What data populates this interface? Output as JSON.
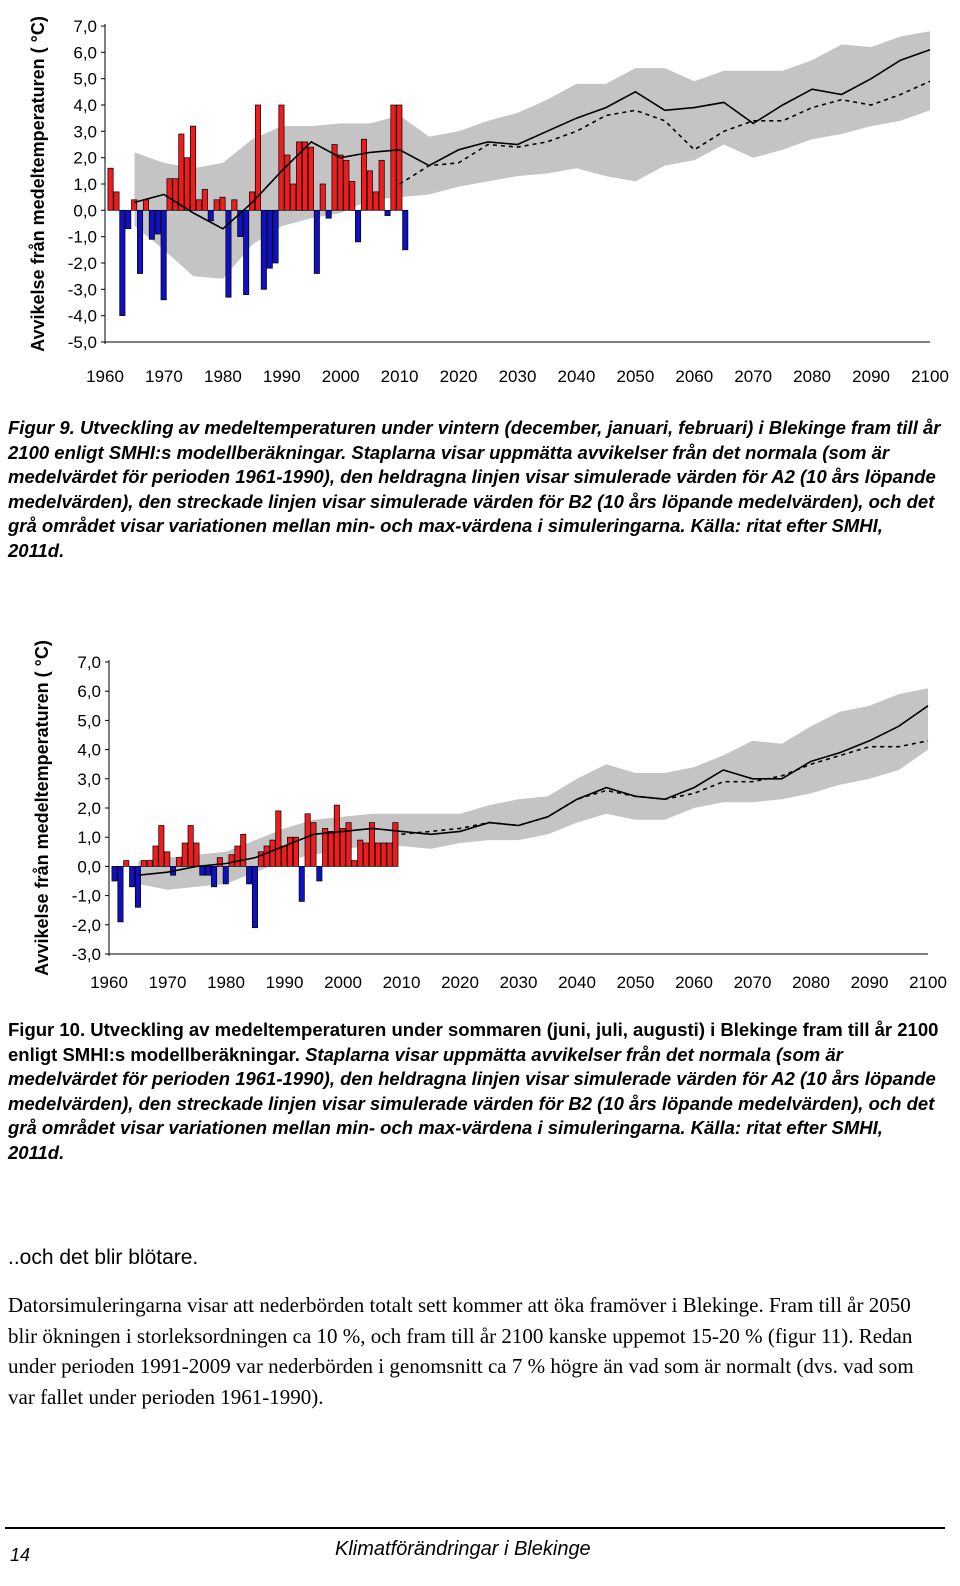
{
  "chart_data": [
    {
      "type": "bar",
      "ylabel": "Avvikelse från medeltemperaturen ( °C)",
      "ylim": [
        -5,
        7
      ],
      "xlim": [
        1960,
        2100
      ],
      "y_ticks": [
        "7,0",
        "6,0",
        "5,0",
        "4,0",
        "3,0",
        "2,0",
        "1,0",
        "0,0",
        "-1,0",
        "-2,0",
        "-3,0",
        "-4,0",
        "-5,0"
      ],
      "x_ticks": [
        "1960",
        "1970",
        "1980",
        "1990",
        "2000",
        "2010",
        "2020",
        "2030",
        "2040",
        "2050",
        "2060",
        "2070",
        "2080",
        "2090",
        "2100"
      ],
      "grid": false,
      "colors": {
        "positive": "#ee1c1c",
        "negative": "#1010c0",
        "range": "#c4c4c4"
      },
      "bars": {
        "start_year": 1961,
        "values": [
          1.6,
          0.7,
          -4.0,
          -0.7,
          0.4,
          -2.4,
          0.4,
          -1.1,
          -0.9,
          -3.4,
          1.2,
          1.2,
          2.9,
          2.0,
          3.2,
          0.4,
          0.8,
          -0.4,
          0.4,
          0.5,
          -3.3,
          0.4,
          -1.0,
          -3.2,
          0.7,
          4.0,
          -3.0,
          -2.2,
          -2.0,
          4.0,
          2.1,
          1.0,
          2.6,
          2.6,
          2.4,
          -2.4,
          1.0,
          -0.3,
          2.5,
          2.1,
          1.9,
          1.1,
          -1.2,
          2.7,
          1.5,
          0.7,
          1.9,
          -0.2,
          4.0,
          4.0,
          -1.5
        ]
      },
      "series": [
        {
          "name": "A2",
          "style": "solid",
          "x": [
            1965,
            1970,
            1975,
            1980,
            1985,
            1990,
            1995,
            2000,
            2005,
            2010,
            2015,
            2020,
            2025,
            2030,
            2035,
            2040,
            2045,
            2050,
            2055,
            2060,
            2065,
            2070,
            2075,
            2080,
            2085,
            2090,
            2095,
            2100
          ],
          "y": [
            0.3,
            0.6,
            -0.1,
            -0.7,
            0.3,
            1.5,
            2.6,
            2.0,
            2.2,
            2.3,
            1.7,
            2.3,
            2.6,
            2.5,
            3.0,
            3.5,
            3.9,
            4.5,
            3.8,
            3.9,
            4.1,
            3.3,
            4.0,
            4.6,
            4.4,
            5.0,
            5.7,
            6.1
          ]
        },
        {
          "name": "B2",
          "style": "dashed",
          "x": [
            2010,
            2015,
            2020,
            2025,
            2030,
            2035,
            2040,
            2045,
            2050,
            2055,
            2060,
            2065,
            2070,
            2075,
            2080,
            2085,
            2090,
            2095,
            2100
          ],
          "y": [
            1.0,
            1.7,
            1.8,
            2.5,
            2.4,
            2.6,
            3.0,
            3.6,
            3.8,
            3.4,
            2.3,
            3.0,
            3.4,
            3.4,
            3.9,
            4.2,
            4.0,
            4.4,
            4.9
          ]
        }
      ],
      "range_band": {
        "x": [
          1965,
          1970,
          1975,
          1980,
          1985,
          1990,
          1995,
          2000,
          2005,
          2010,
          2015,
          2020,
          2025,
          2030,
          2035,
          2040,
          2045,
          2050,
          2055,
          2060,
          2065,
          2070,
          2075,
          2080,
          2085,
          2090,
          2095,
          2100
        ],
        "min": [
          -0.6,
          -1.5,
          -2.5,
          -2.6,
          -1.3,
          -0.6,
          -0.3,
          -0.1,
          0.4,
          0.5,
          0.6,
          0.9,
          1.1,
          1.3,
          1.4,
          1.6,
          1.3,
          1.1,
          1.7,
          1.9,
          2.5,
          2.0,
          2.3,
          2.7,
          2.9,
          3.2,
          3.4,
          3.8
        ],
        "max": [
          2.2,
          1.8,
          1.6,
          1.8,
          2.7,
          3.2,
          3.2,
          3.3,
          3.3,
          3.6,
          2.8,
          3.0,
          3.4,
          3.7,
          4.2,
          4.8,
          4.8,
          5.4,
          5.4,
          4.9,
          5.3,
          5.3,
          5.3,
          5.7,
          6.3,
          6.2,
          6.6,
          6.8
        ]
      }
    },
    {
      "type": "bar",
      "ylabel": "Avvikelse från medeltemperaturen ( °C)",
      "ylim": [
        -3,
        7
      ],
      "xlim": [
        1960,
        2100
      ],
      "y_ticks": [
        "7,0",
        "6,0",
        "5,0",
        "4,0",
        "3,0",
        "2,0",
        "1,0",
        "0,0",
        "-1,0",
        "-2,0",
        "-3,0"
      ],
      "x_ticks": [
        "1960",
        "1970",
        "1980",
        "1990",
        "2000",
        "2010",
        "2020",
        "2030",
        "2040",
        "2050",
        "2060",
        "2070",
        "2080",
        "2090",
        "2100"
      ],
      "grid": false,
      "colors": {
        "positive": "#ee1c1c",
        "negative": "#1010c0",
        "range": "#c4c4c4"
      },
      "bars": {
        "start_year": 1961,
        "values": [
          -0.5,
          -1.9,
          0.2,
          -0.7,
          -1.4,
          0.2,
          0.2,
          0.7,
          1.4,
          0.5,
          -0.3,
          0.3,
          0.8,
          1.4,
          0.8,
          -0.3,
          -0.3,
          -0.7,
          0.3,
          -0.6,
          0.4,
          0.7,
          1.1,
          -0.6,
          -2.1,
          0.5,
          0.7,
          0.9,
          1.9,
          0.7,
          1.0,
          1.0,
          -1.2,
          1.8,
          1.5,
          -0.5,
          1.3,
          1.2,
          2.1,
          1.3,
          1.5,
          0.2,
          0.9,
          0.8,
          1.5,
          0.8,
          0.8,
          0.8,
          1.5
        ]
      },
      "series": [
        {
          "name": "A2",
          "style": "solid",
          "x": [
            1965,
            1970,
            1975,
            1980,
            1985,
            1990,
            1995,
            2000,
            2005,
            2010,
            2015,
            2020,
            2025,
            2030,
            2035,
            2040,
            2045,
            2050,
            2055,
            2060,
            2065,
            2070,
            2075,
            2080,
            2085,
            2090,
            2095,
            2100
          ],
          "y": [
            -0.3,
            -0.2,
            0.0,
            0.1,
            0.3,
            0.7,
            1.1,
            1.2,
            1.3,
            1.2,
            1.1,
            1.2,
            1.5,
            1.4,
            1.7,
            2.3,
            2.7,
            2.4,
            2.3,
            2.7,
            3.3,
            3.0,
            3.0,
            3.6,
            3.9,
            4.3,
            4.8,
            5.5
          ]
        },
        {
          "name": "B2",
          "style": "dashed",
          "x": [
            2010,
            2015,
            2020,
            2025,
            2030,
            2035,
            2040,
            2045,
            2050,
            2055,
            2060,
            2065,
            2070,
            2075,
            2080,
            2085,
            2090,
            2095,
            2100
          ],
          "y": [
            1.1,
            1.2,
            1.3,
            1.5,
            1.4,
            1.7,
            2.3,
            2.6,
            2.4,
            2.3,
            2.5,
            2.9,
            2.9,
            3.1,
            3.5,
            3.8,
            4.1,
            4.1,
            4.3
          ]
        }
      ],
      "range_band": {
        "x": [
          1965,
          1970,
          1975,
          1980,
          1985,
          1990,
          1995,
          2000,
          2005,
          2010,
          2015,
          2020,
          2025,
          2030,
          2035,
          2040,
          2045,
          2050,
          2055,
          2060,
          2065,
          2070,
          2075,
          2080,
          2085,
          2090,
          2095,
          2100
        ],
        "min": [
          -0.6,
          -0.8,
          -0.7,
          -0.6,
          -0.2,
          0.2,
          0.4,
          0.6,
          0.7,
          0.7,
          0.6,
          0.8,
          0.9,
          0.9,
          1.1,
          1.5,
          1.8,
          1.6,
          1.6,
          2.0,
          2.2,
          2.2,
          2.3,
          2.5,
          2.8,
          3.0,
          3.3,
          4.0
        ],
        "max": [
          0.2,
          0.3,
          0.4,
          0.5,
          0.9,
          1.3,
          1.6,
          1.7,
          1.8,
          1.8,
          1.8,
          1.8,
          2.1,
          2.3,
          2.4,
          3.0,
          3.5,
          3.2,
          3.2,
          3.4,
          3.8,
          4.3,
          4.2,
          4.8,
          5.3,
          5.5,
          5.9,
          6.1
        ]
      }
    }
  ],
  "captions": {
    "fig9": "Figur 9. Utveckling av medeltemperaturen under vintern (december, januari, februari) i Blekinge fram till år 2100 enligt SMHI:s modellberäkningar. Staplarna visar uppmätta avvikelser från det normala (som är medelvärdet för perioden 1961-1990), den heldragna linjen visar simulerade värden för A2 (10 års löpande medelvärden), den streckade linjen visar simulerade värden för B2 (10 års löpande medelvärden), och det grå området visar variationen mellan min- och max-värdena i simuleringarna. Källa: ritat efter SMHI, 2011d.",
    "fig10_title": "Figur 10. Utveckling av medeltemperaturen under sommaren (juni, juli, augusti) i Blekinge fram till år 2100 enligt SMHI:s modellberäkningar.",
    "fig10_body": "Staplarna visar uppmätta avvikelser från det normala (som är medelvärdet för perioden 1961-1990), den heldragna linjen visar simulerade värden för A2 (10 års löpande medelvärden), den streckade linjen visar simulerade värden för B2 (10 års löpande medelvärden), och det grå området visar variationen mellan min- och max-värdena i simuleringarna. Källa: ritat efter SMHI, 2011d."
  },
  "section_heading": "..och det blir blötare.",
  "body_text": "Datorsimuleringarna visar att nederbörden totalt sett kommer att öka framöver i Blekinge. Fram till år 2050 blir ökningen i storleksordningen ca 10 %, och fram till år 2100 kanske uppemot 15-20 % (figur 11). Redan under perioden 1991-2009 var nederbörden i genomsnitt ca 7 % högre än vad som är normalt (dvs. vad som var fallet under perioden 1961-1990).",
  "footer": {
    "page_number": "14",
    "title": "Klimatförändringar i Blekinge"
  }
}
